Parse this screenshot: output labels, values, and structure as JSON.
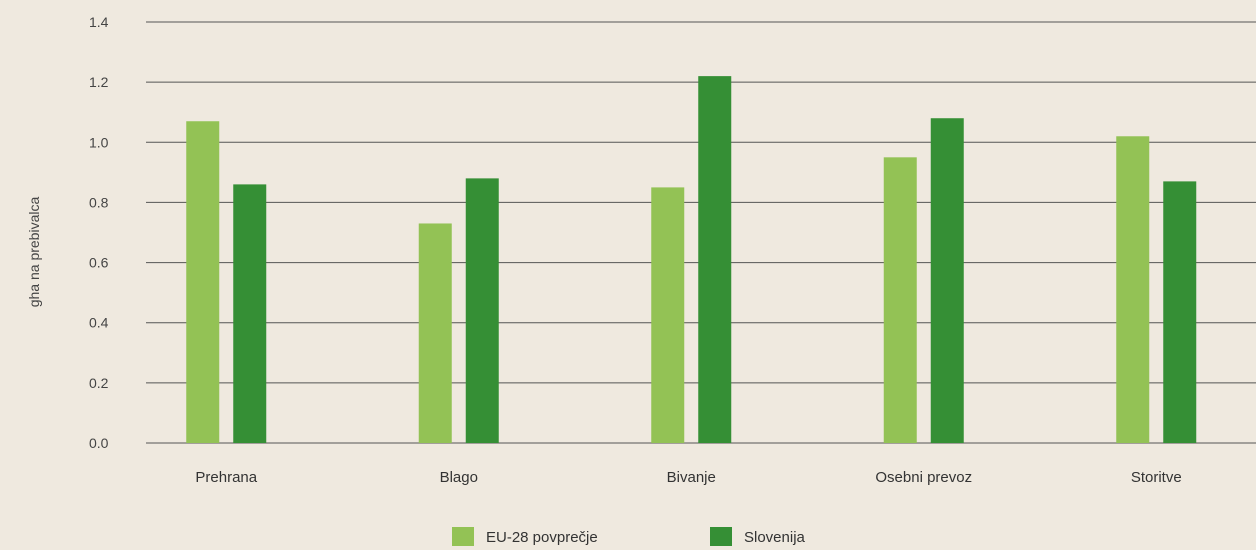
{
  "chart_data": {
    "type": "bar",
    "categories": [
      "Prehrana",
      "Blago",
      "Bivanje",
      "Osebni prevoz",
      "Storitve"
    ],
    "series": [
      {
        "name": "EU-28 povprečje",
        "values": [
          1.07,
          0.73,
          0.85,
          0.95,
          1.02
        ]
      },
      {
        "name": "Slovenija",
        "values": [
          0.86,
          0.88,
          1.22,
          1.08,
          0.87
        ]
      }
    ],
    "xlabel": "",
    "ylabel": "gha na prebivalca",
    "ylim": [
      0,
      1.4
    ],
    "yticks": [
      "0.0",
      "0.2",
      "0.4",
      "0.6",
      "0.8",
      "1.0",
      "1.2",
      "1.4"
    ],
    "grid": true,
    "legend_position": "bottom-center",
    "colors": [
      "#93c255",
      "#358f35"
    ],
    "grid_color": "#555555",
    "background": "#efe9df"
  }
}
